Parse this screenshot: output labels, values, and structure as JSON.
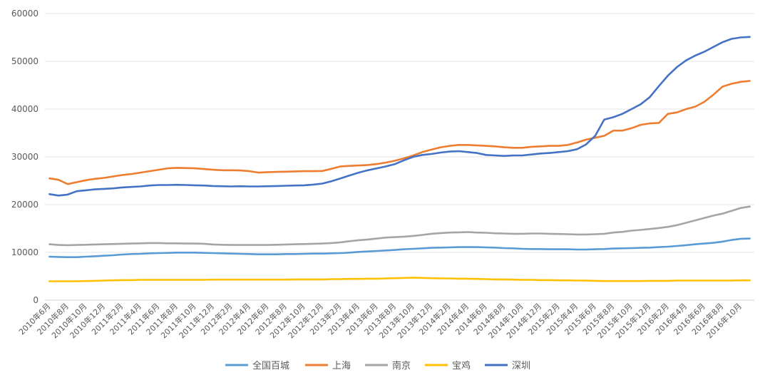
{
  "chart_data": {
    "type": "line",
    "title": "",
    "xlabel": "",
    "ylabel": "",
    "ylim": [
      0,
      60000
    ],
    "yticks": [
      0,
      10000,
      20000,
      30000,
      40000,
      50000,
      60000
    ],
    "grid": "horizontal",
    "legend_position": "bottom",
    "categories": [
      "2010年6月",
      "2010年7月",
      "2010年8月",
      "2010年9月",
      "2010年10月",
      "2010年11月",
      "2010年12月",
      "2011年1月",
      "2011年2月",
      "2011年3月",
      "2011年4月",
      "2011年5月",
      "2011年6月",
      "2011年7月",
      "2011年8月",
      "2011年9月",
      "2011年10月",
      "2011年11月",
      "2011年12月",
      "2012年1月",
      "2012年2月",
      "2012年3月",
      "2012年4月",
      "2012年5月",
      "2012年6月",
      "2012年7月",
      "2012年8月",
      "2012年9月",
      "2012年10月",
      "2012年11月",
      "2012年12月",
      "2013年1月",
      "2013年2月",
      "2013年3月",
      "2013年4月",
      "2013年5月",
      "2013年6月",
      "2013年7月",
      "2013年8月",
      "2013年9月",
      "2013年10月",
      "2013年11月",
      "2013年12月",
      "2014年1月",
      "2014年2月",
      "2014年3月",
      "2014年4月",
      "2014年5月",
      "2014年6月",
      "2014年7月",
      "2014年8月",
      "2014年9月",
      "2014年10月",
      "2014年11月",
      "2014年12月",
      "2015年1月",
      "2015年2月",
      "2015年3月",
      "2015年4月",
      "2015年5月",
      "2015年6月",
      "2015年7月",
      "2015年8月",
      "2015年9月",
      "2015年10月",
      "2015年11月",
      "2015年12月",
      "2016年1月",
      "2016年2月",
      "2016年3月",
      "2016年4月",
      "2016年5月",
      "2016年6月",
      "2016年7月",
      "2016年8月",
      "2016年9月",
      "2016年10月",
      "2016年11月"
    ],
    "tick_labels": [
      "2010年6月",
      "2010年8月",
      "2010年10月",
      "2010年12月",
      "2011年2月",
      "2011年4月",
      "2011年6月",
      "2011年8月",
      "2011年10月",
      "2011年12月",
      "2012年2月",
      "2012年4月",
      "2012年6月",
      "2012年8月",
      "2012年10月",
      "2012年12月",
      "2013年2月",
      "2013年4月",
      "2013年6月",
      "2013年8月",
      "2013年10月",
      "2013年12月",
      "2014年2月",
      "2014年4月",
      "2014年6月",
      "2014年8月",
      "2014年10月",
      "2014年12月",
      "2015年2月",
      "2015年4月",
      "2015年6月",
      "2015年8月",
      "2015年10月",
      "2015年12月",
      "2016年2月",
      "2016年4月",
      "2016年6月",
      "2016年8月",
      "2016年10月"
    ],
    "series": [
      {
        "name": "全国百城",
        "color": "#5b9bd5",
        "values": [
          9100,
          9050,
          9000,
          9000,
          9100,
          9200,
          9300,
          9400,
          9550,
          9650,
          9700,
          9800,
          9850,
          9900,
          9950,
          9950,
          9950,
          9900,
          9850,
          9800,
          9750,
          9700,
          9650,
          9600,
          9600,
          9600,
          9650,
          9650,
          9700,
          9750,
          9750,
          9800,
          9850,
          9950,
          10100,
          10200,
          10300,
          10400,
          10500,
          10650,
          10750,
          10850,
          10950,
          11000,
          11050,
          11100,
          11100,
          11100,
          11050,
          11000,
          10900,
          10850,
          10750,
          10700,
          10700,
          10650,
          10650,
          10650,
          10600,
          10600,
          10650,
          10700,
          10800,
          10850,
          10900,
          10950,
          11000,
          11100,
          11200,
          11350,
          11500,
          11700,
          11850,
          12000,
          12250,
          12600,
          12850,
          12900
        ]
      },
      {
        "name": "上海",
        "color": "#ed7d31",
        "values": [
          25500,
          25200,
          24300,
          24700,
          25100,
          25400,
          25600,
          25900,
          26200,
          26400,
          26700,
          27000,
          27300,
          27600,
          27700,
          27650,
          27600,
          27450,
          27300,
          27200,
          27200,
          27150,
          27000,
          26700,
          26800,
          26850,
          26900,
          26950,
          27000,
          27000,
          27050,
          27500,
          28000,
          28100,
          28200,
          28300,
          28500,
          28800,
          29200,
          29700,
          30300,
          31000,
          31500,
          32000,
          32300,
          32500,
          32500,
          32400,
          32300,
          32200,
          32000,
          31900,
          31900,
          32100,
          32200,
          32300,
          32300,
          32500,
          33000,
          33600,
          34000,
          34400,
          35500,
          35500,
          36000,
          36700,
          37000,
          37100,
          39000,
          39300,
          40000,
          40500,
          41500,
          43000,
          44700,
          45300,
          45700,
          45900
        ]
      },
      {
        "name": "南京",
        "color": "#a5a5a5",
        "values": [
          11700,
          11550,
          11500,
          11550,
          11600,
          11650,
          11700,
          11750,
          11800,
          11850,
          11900,
          11950,
          11950,
          11900,
          11900,
          11850,
          11850,
          11800,
          11650,
          11600,
          11550,
          11550,
          11550,
          11550,
          11550,
          11600,
          11650,
          11700,
          11750,
          11800,
          11850,
          11950,
          12100,
          12350,
          12550,
          12700,
          12900,
          13100,
          13200,
          13300,
          13450,
          13650,
          13900,
          14050,
          14150,
          14200,
          14250,
          14150,
          14100,
          14000,
          13950,
          13900,
          13900,
          13950,
          13950,
          13900,
          13850,
          13800,
          13750,
          13750,
          13800,
          13900,
          14150,
          14300,
          14550,
          14700,
          14900,
          15100,
          15350,
          15700,
          16200,
          16700,
          17200,
          17700,
          18100,
          18700,
          19300,
          19600
        ]
      },
      {
        "name": "宝鸡",
        "color": "#ffc000",
        "values": [
          3950,
          3950,
          3950,
          3950,
          4000,
          4050,
          4100,
          4150,
          4200,
          4200,
          4250,
          4250,
          4250,
          4250,
          4250,
          4250,
          4250,
          4250,
          4300,
          4300,
          4300,
          4300,
          4300,
          4300,
          4300,
          4300,
          4300,
          4350,
          4350,
          4350,
          4350,
          4400,
          4400,
          4450,
          4450,
          4500,
          4500,
          4550,
          4600,
          4650,
          4700,
          4650,
          4600,
          4550,
          4550,
          4500,
          4500,
          4450,
          4400,
          4350,
          4350,
          4300,
          4250,
          4250,
          4200,
          4200,
          4150,
          4150,
          4100,
          4100,
          4050,
          4000,
          4000,
          4000,
          4000,
          4000,
          4050,
          4050,
          4050,
          4100,
          4100,
          4100,
          4100,
          4100,
          4100,
          4100,
          4150,
          4150
        ]
      },
      {
        "name": "深圳",
        "color": "#4472c4",
        "values": [
          22200,
          21900,
          22100,
          22800,
          23000,
          23200,
          23300,
          23400,
          23600,
          23700,
          23800,
          24000,
          24100,
          24100,
          24150,
          24100,
          24050,
          24000,
          23900,
          23850,
          23800,
          23850,
          23800,
          23800,
          23850,
          23900,
          23950,
          24000,
          24050,
          24200,
          24400,
          24900,
          25500,
          26100,
          26700,
          27200,
          27600,
          28000,
          28500,
          29300,
          30000,
          30400,
          30600,
          30900,
          31100,
          31200,
          31000,
          30800,
          30400,
          30300,
          30200,
          30300,
          30300,
          30500,
          30700,
          30800,
          31000,
          31200,
          31600,
          32600,
          34400,
          37800,
          38300,
          39000,
          40000,
          41000,
          42500,
          44800,
          47000,
          48800,
          50200,
          51200,
          52000,
          53000,
          54000,
          54700,
          55000,
          55100
        ]
      }
    ]
  }
}
